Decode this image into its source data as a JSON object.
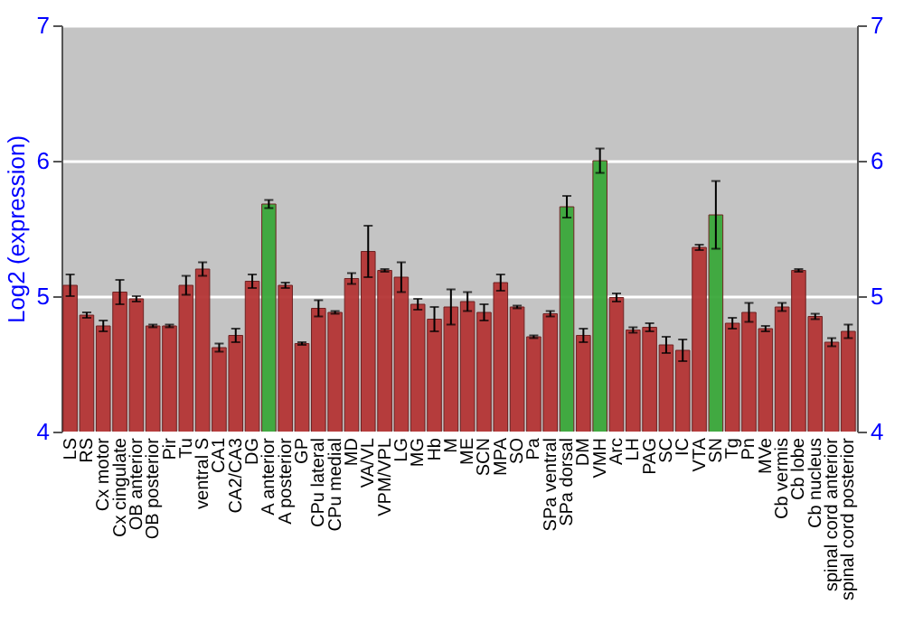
{
  "chart_data": {
    "type": "bar",
    "ylabel": "Log2 (expression)",
    "categories": [
      "LS",
      "RS",
      "Cx motor",
      "Cx cingulate",
      "OB anterior",
      "OB posterior",
      "Pir",
      "Tu",
      "ventral S",
      "CA1",
      "CA2/CA3",
      "DG",
      "A anterior",
      "A posterior",
      "GP",
      "CPu lateral",
      "CPu medial",
      "MD",
      "VA/VL",
      "VPM/VPL",
      "LG",
      "MG",
      "Hb",
      "M",
      "ME",
      "SCN",
      "MPA",
      "SO",
      "Pa",
      "SPa ventral",
      "SPa dorsal",
      "DM",
      "VMH",
      "Arc",
      "LH",
      "PAG",
      "SC",
      "IC",
      "VTA",
      "SN",
      "Tg",
      "Pn",
      "MVe",
      "Cb vermis",
      "Cb lobe",
      "Cb nucleus",
      "spinal cord anterior",
      "spinal cord posterior"
    ],
    "values": [
      5.08,
      4.86,
      4.78,
      5.03,
      4.98,
      4.78,
      4.78,
      5.08,
      5.2,
      4.62,
      4.71,
      5.11,
      5.68,
      5.08,
      4.65,
      4.91,
      4.88,
      5.13,
      5.33,
      5.19,
      5.14,
      4.94,
      4.83,
      4.92,
      4.96,
      4.88,
      5.1,
      4.92,
      4.7,
      4.87,
      5.66,
      4.71,
      6.0,
      4.99,
      4.75,
      4.77,
      4.64,
      4.6,
      5.36,
      5.6,
      4.8,
      4.88,
      4.76,
      4.92,
      5.19,
      4.85,
      4.66,
      4.74
    ],
    "errors": [
      0.08,
      0.02,
      0.04,
      0.09,
      0.02,
      0.01,
      0.01,
      0.07,
      0.05,
      0.03,
      0.05,
      0.05,
      0.03,
      0.02,
      0.01,
      0.06,
      0.01,
      0.04,
      0.19,
      0.01,
      0.11,
      0.04,
      0.09,
      0.13,
      0.07,
      0.06,
      0.06,
      0.01,
      0.01,
      0.02,
      0.08,
      0.05,
      0.09,
      0.03,
      0.02,
      0.03,
      0.06,
      0.08,
      0.02,
      0.25,
      0.04,
      0.07,
      0.02,
      0.03,
      0.01,
      0.02,
      0.03,
      0.05
    ],
    "colors": [
      "#b53535",
      "#b53535",
      "#b53535",
      "#b53535",
      "#b53535",
      "#b53535",
      "#b53535",
      "#b53535",
      "#b53535",
      "#b53535",
      "#b53535",
      "#b53535",
      "#3aa83a",
      "#b53535",
      "#b53535",
      "#b53535",
      "#b53535",
      "#b53535",
      "#b53535",
      "#b53535",
      "#b53535",
      "#b53535",
      "#b53535",
      "#b53535",
      "#b53535",
      "#b53535",
      "#b53535",
      "#b53535",
      "#b53535",
      "#b53535",
      "#3aa83a",
      "#b53535",
      "#3aa83a",
      "#b53535",
      "#b53535",
      "#b53535",
      "#b53535",
      "#b53535",
      "#b53535",
      "#3aa83a",
      "#b53535",
      "#b53535",
      "#b53535",
      "#b53535",
      "#b53535",
      "#b53535",
      "#b53535",
      "#b53535"
    ],
    "ylim": [
      4,
      7
    ],
    "yticks": [
      4,
      5,
      6,
      7
    ],
    "y2lim": [
      4,
      7
    ],
    "y2ticks": [
      4,
      5,
      6,
      7
    ],
    "grid": "y"
  }
}
